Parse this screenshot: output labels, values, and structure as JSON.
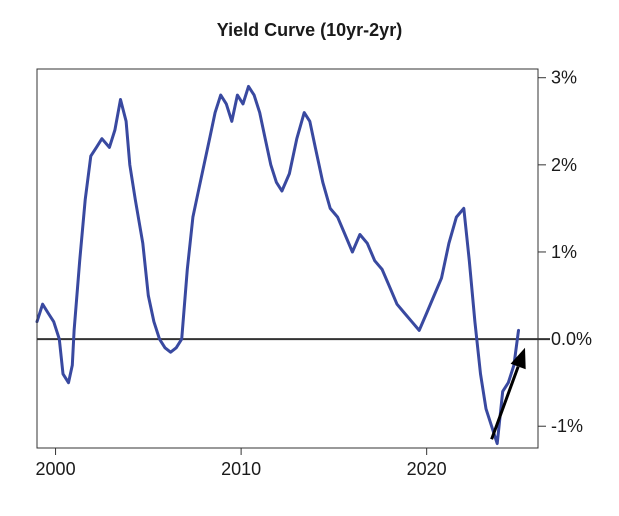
{
  "chart_data": {
    "type": "line",
    "title": "Yield Curve (10yr-2yr)",
    "xlabel": "",
    "ylabel": "",
    "xlim": [
      1999,
      2026
    ],
    "ylim": [
      -1.25,
      3.1
    ],
    "x_ticks": [
      2000,
      2010,
      2020
    ],
    "x_tick_labels": [
      "2000",
      "2010",
      "2020"
    ],
    "y_ticks": [
      3,
      2,
      1,
      0,
      -1
    ],
    "y_tick_labels": [
      "3%",
      "2%",
      "1%",
      "0.0%",
      "-1%"
    ],
    "y_axis_position": "right",
    "grid": false,
    "zero_line": true,
    "colors": {
      "series": "#3949a0",
      "zero_line": "#333333",
      "frame": "#333333",
      "arrow": "#000000"
    },
    "series": [
      {
        "x": [
          1999.0,
          1999.3,
          1999.6,
          1999.9,
          2000.2,
          2000.4,
          2000.7,
          2000.9,
          2001.0,
          2001.3,
          2001.6,
          2001.9,
          2002.2,
          2002.5,
          2002.9,
          2003.2,
          2003.5,
          2003.8,
          2004.0,
          2004.3,
          2004.7,
          2005.0,
          2005.3,
          2005.6,
          2005.9,
          2006.2,
          2006.5,
          2006.8,
          2007.1,
          2007.4,
          2007.7,
          2008.0,
          2008.3,
          2008.6,
          2008.9,
          2009.2,
          2009.5,
          2009.8,
          2010.1,
          2010.4,
          2010.7,
          2011.0,
          2011.3,
          2011.6,
          2011.9,
          2012.2,
          2012.6,
          2013.0,
          2013.4,
          2013.7,
          2014.0,
          2014.4,
          2014.8,
          2015.2,
          2015.6,
          2016.0,
          2016.4,
          2016.8,
          2017.2,
          2017.6,
          2018.0,
          2018.4,
          2018.8,
          2019.2,
          2019.6,
          2020.0,
          2020.4,
          2020.8,
          2021.2,
          2021.6,
          2022.0,
          2022.3,
          2022.6,
          2022.9,
          2023.2,
          2023.5,
          2023.8,
          2024.1,
          2024.4,
          2024.7,
          2024.95
        ],
        "y": [
          0.2,
          0.4,
          0.3,
          0.2,
          0.0,
          -0.4,
          -0.5,
          -0.3,
          0.1,
          0.9,
          1.6,
          2.1,
          2.2,
          2.3,
          2.2,
          2.4,
          2.75,
          2.5,
          2.0,
          1.6,
          1.1,
          0.5,
          0.2,
          0.0,
          -0.1,
          -0.15,
          -0.1,
          0.0,
          0.8,
          1.4,
          1.7,
          2.0,
          2.3,
          2.6,
          2.8,
          2.7,
          2.5,
          2.8,
          2.7,
          2.9,
          2.8,
          2.6,
          2.3,
          2.0,
          1.8,
          1.7,
          1.9,
          2.3,
          2.6,
          2.5,
          2.2,
          1.8,
          1.5,
          1.4,
          1.2,
          1.0,
          1.2,
          1.1,
          0.9,
          0.8,
          0.6,
          0.4,
          0.3,
          0.2,
          0.1,
          0.3,
          0.5,
          0.7,
          1.1,
          1.4,
          1.5,
          0.9,
          0.2,
          -0.4,
          -0.8,
          -1.0,
          -1.2,
          -0.6,
          -0.5,
          -0.3,
          0.1
        ]
      }
    ],
    "annotations": [
      {
        "type": "arrow",
        "from": [
          2023.5,
          -1.15
        ],
        "to": [
          2025.3,
          -0.1
        ]
      }
    ]
  }
}
